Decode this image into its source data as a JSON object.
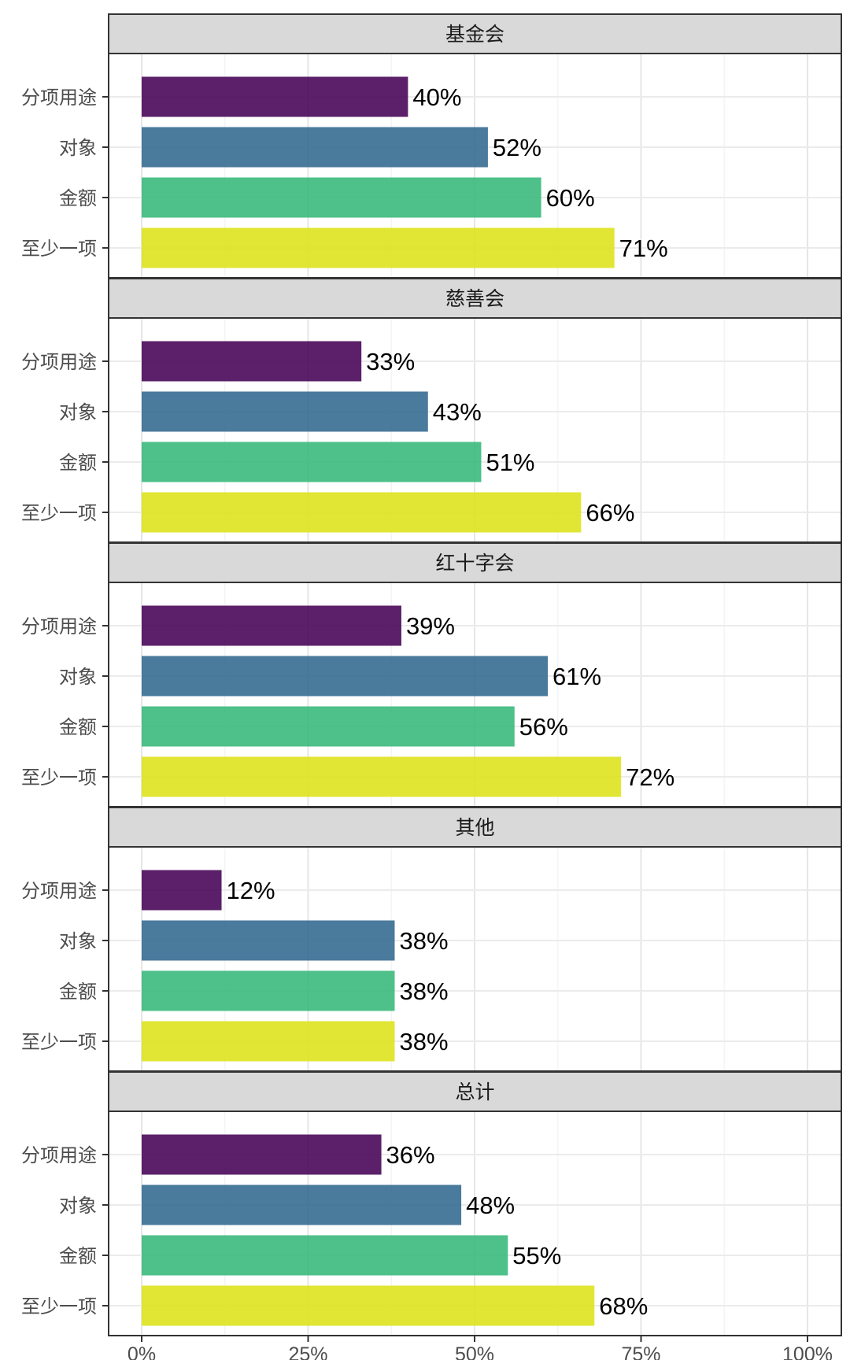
{
  "chart_data": {
    "type": "bar",
    "orientation": "horizontal",
    "faceted": true,
    "categories": [
      "分项用途",
      "对象",
      "金额",
      "至少一项"
    ],
    "category_colors": [
      "#440154",
      "#31688E",
      "#35B779",
      "#DDE318"
    ],
    "xlim": [
      0,
      1
    ],
    "x_ticks": [
      0,
      0.25,
      0.5,
      0.75,
      1
    ],
    "x_tick_labels": [
      "0%",
      "25%",
      "50%",
      "75%",
      "100%"
    ],
    "grid": true,
    "panels": [
      {
        "title": "基金会",
        "values": [
          0.4,
          0.52,
          0.6,
          0.71
        ],
        "labels": [
          "40%",
          "52%",
          "60%",
          "71%"
        ]
      },
      {
        "title": "慈善会",
        "values": [
          0.33,
          0.43,
          0.51,
          0.66
        ],
        "labels": [
          "33%",
          "43%",
          "51%",
          "66%"
        ]
      },
      {
        "title": "红十字会",
        "values": [
          0.39,
          0.61,
          0.56,
          0.72
        ],
        "labels": [
          "39%",
          "61%",
          "56%",
          "72%"
        ]
      },
      {
        "title": "其他",
        "values": [
          0.12,
          0.38,
          0.38,
          0.38
        ],
        "labels": [
          "12%",
          "38%",
          "38%",
          "38%"
        ]
      },
      {
        "title": "总计",
        "values": [
          0.36,
          0.48,
          0.55,
          0.68
        ],
        "labels": [
          "36%",
          "48%",
          "55%",
          "68%"
        ]
      }
    ]
  }
}
